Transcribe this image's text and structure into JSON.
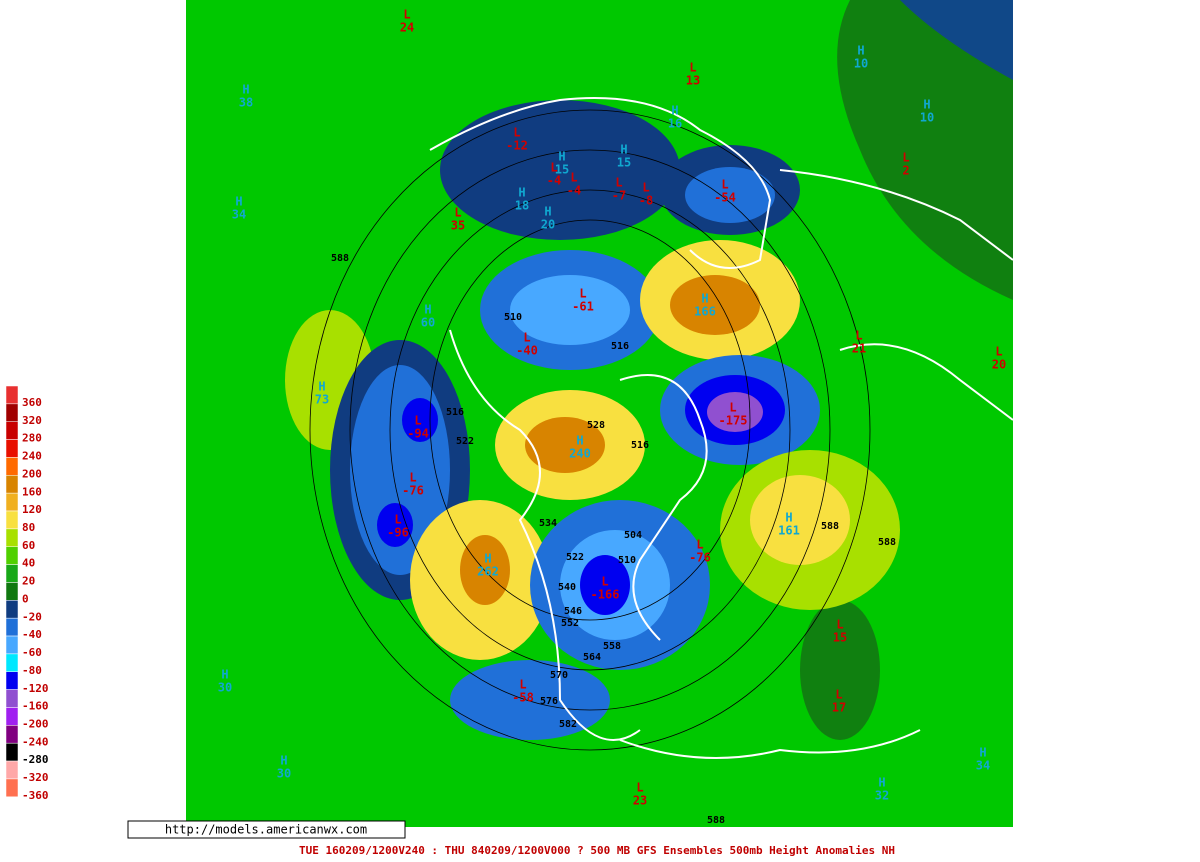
{
  "legend": {
    "items": [
      {
        "label": "360",
        "color": "#e83030"
      },
      {
        "label": "320",
        "color": "#a00000"
      },
      {
        "label": "280",
        "color": "#c80000"
      },
      {
        "label": "240",
        "color": "#e81000"
      },
      {
        "label": "200",
        "color": "#ff6a00"
      },
      {
        "label": "160",
        "color": "#d88400"
      },
      {
        "label": "120",
        "color": "#f0b020"
      },
      {
        "label": "80",
        "color": "#f8e040"
      },
      {
        "label": "60",
        "color": "#a8e000"
      },
      {
        "label": "40",
        "color": "#50d000"
      },
      {
        "label": "20",
        "color": "#18a818"
      },
      {
        "label": "0",
        "color": "#107810"
      },
      {
        "label": "-20",
        "color": "#103c80"
      },
      {
        "label": "-40",
        "color": "#2070d8"
      },
      {
        "label": "-60",
        "color": "#48a8ff"
      },
      {
        "label": "-80",
        "color": "#00e8ff"
      },
      {
        "label": "-120",
        "color": "#0000f0"
      },
      {
        "label": "-160",
        "color": "#9050d0"
      },
      {
        "label": "-200",
        "color": "#a020f0"
      },
      {
        "label": "-240",
        "color": "#800080"
      },
      {
        "label": "-280",
        "color": "#000000"
      },
      {
        "label": "-320",
        "color": "#ffa8a8"
      },
      {
        "label": "-360",
        "color": "#ff7050"
      }
    ]
  },
  "centers": [
    {
      "symbol": "L",
      "value": 24
    },
    {
      "symbol": "H",
      "value": 10
    },
    {
      "symbol": "L",
      "value": 13
    },
    {
      "symbol": "H",
      "value": 16
    },
    {
      "symbol": "H",
      "value": 10
    },
    {
      "symbol": "L",
      "value": -12
    },
    {
      "symbol": "H",
      "value": 15
    },
    {
      "symbol": "L",
      "value": -4
    },
    {
      "symbol": "L",
      "value": -4
    },
    {
      "symbol": "H",
      "value": 15
    },
    {
      "symbol": "L",
      "value": -7
    },
    {
      "symbol": "L",
      "value": -8
    },
    {
      "symbol": "L",
      "value": -54
    },
    {
      "symbol": "H",
      "value": 18
    },
    {
      "symbol": "H",
      "value": 20
    },
    {
      "symbol": "L",
      "value": 35
    },
    {
      "symbol": "H",
      "value": 34
    },
    {
      "symbol": "H",
      "value": 38
    },
    {
      "symbol": "L",
      "value": 2
    },
    {
      "symbol": "L",
      "value": -61
    },
    {
      "symbol": "H",
      "value": 166
    },
    {
      "symbol": "H",
      "value": 60
    },
    {
      "symbol": "L",
      "value": -40
    },
    {
      "symbol": "L",
      "value": 21
    },
    {
      "symbol": "L",
      "value": 20
    },
    {
      "symbol": "H",
      "value": 73
    },
    {
      "symbol": "L",
      "value": -175
    },
    {
      "symbol": "L",
      "value": -94
    },
    {
      "symbol": "H",
      "value": 240
    },
    {
      "symbol": "L",
      "value": -76
    },
    {
      "symbol": "L",
      "value": -96
    },
    {
      "symbol": "H",
      "value": 161
    },
    {
      "symbol": "H",
      "value": 262
    },
    {
      "symbol": "L",
      "value": -76
    },
    {
      "symbol": "L",
      "value": -166
    },
    {
      "symbol": "L",
      "value": 15
    },
    {
      "symbol": "L",
      "value": -58
    },
    {
      "symbol": "L",
      "value": 17
    },
    {
      "symbol": "H",
      "value": 30
    },
    {
      "symbol": "H",
      "value": 30
    },
    {
      "symbol": "H",
      "value": 34
    },
    {
      "symbol": "L",
      "value": 23
    },
    {
      "symbol": "H",
      "value": 32
    }
  ],
  "contours": [
    588,
    510,
    516,
    516,
    522,
    528,
    516,
    534,
    504,
    510,
    522,
    588,
    588,
    540,
    546,
    552,
    558,
    564,
    570,
    576,
    582,
    588
  ],
  "source": "http://models.americanwx.com",
  "caption": "TUE 160209/1200V240 : THU 840209/1200V000  ? 500 MB GFS Ensembles 500mb Height Anomalies NH"
}
